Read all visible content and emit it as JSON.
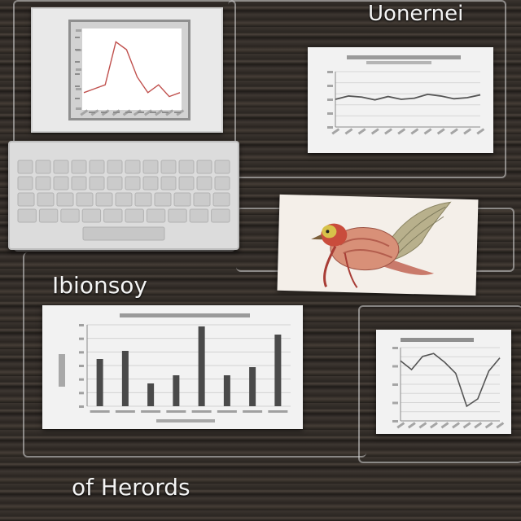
{
  "labels": {
    "top_right": "Uonernei",
    "middle_left": "Ibionsoy",
    "bottom_left": "of Herords"
  },
  "colors": {
    "wood": "#2f2925",
    "wire": "#d7d7d7",
    "line_chart_stroke": "#555555",
    "bar_fill": "#4a4a4a",
    "monitor_curve": "#c0504d"
  },
  "chart_data": [
    {
      "type": "line",
      "title": "",
      "x": [
        1,
        2,
        3,
        4,
        5,
        6,
        7,
        8,
        9,
        10
      ],
      "series": [
        {
          "values": [
            2,
            2.5,
            3,
            8.5,
            7.5,
            4,
            2,
            3,
            1.5,
            2
          ]
        }
      ],
      "ylim": [
        0,
        10
      ]
    },
    {
      "type": "line",
      "title": "",
      "x": [
        1,
        2,
        3,
        4,
        5,
        6,
        7,
        8,
        9,
        10,
        11,
        12
      ],
      "series": [
        {
          "values": [
            5,
            5.6,
            5.4,
            4.9,
            5.5,
            5.0,
            5.2,
            5.9,
            5.6,
            5.1,
            5.3,
            5.8
          ]
        }
      ],
      "ylim": [
        0,
        10
      ]
    },
    {
      "type": "bar",
      "title": "",
      "categories": [
        "",
        "",
        "",
        "",
        "",
        "",
        "",
        ""
      ],
      "values": [
        5.8,
        6.8,
        2.8,
        3.8,
        9.8,
        3.8,
        4.8,
        8.8
      ],
      "ylim": [
        0,
        10
      ]
    },
    {
      "type": "line",
      "title": "",
      "x": [
        1,
        2,
        3,
        4,
        5,
        6,
        7,
        8,
        9,
        10
      ],
      "series": [
        {
          "values": [
            8.2,
            7,
            8.8,
            9.2,
            8,
            6.5,
            2,
            3,
            6.8,
            8.6
          ]
        }
      ],
      "ylim": [
        0,
        10
      ]
    }
  ]
}
